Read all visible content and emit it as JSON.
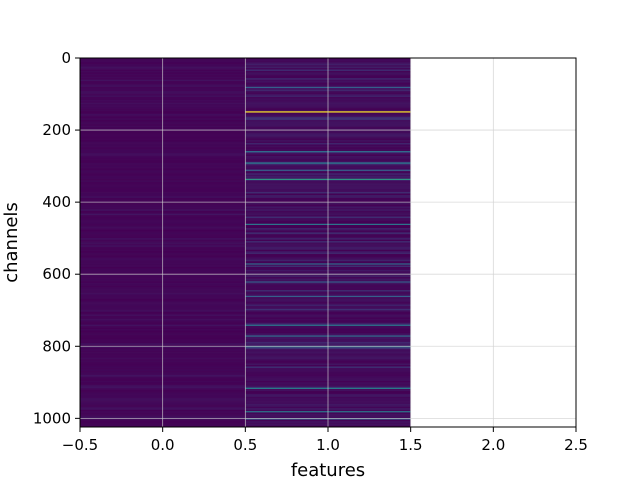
{
  "chart_data": {
    "type": "heatmap",
    "title": "",
    "xlabel": "features",
    "ylabel": "channels",
    "xlim": [
      -0.5,
      2.5
    ],
    "ylim": [
      1024,
      0
    ],
    "y_inverted": true,
    "grid": true,
    "x_ticks": [
      "−0.5",
      "0.0",
      "0.5",
      "1.0",
      "1.5",
      "2.0",
      "2.5"
    ],
    "x_tick_values": [
      -0.5,
      0.0,
      0.5,
      1.0,
      1.5,
      2.0,
      2.5
    ],
    "y_ticks": [
      "0",
      "200",
      "400",
      "600",
      "800",
      "1000"
    ],
    "y_tick_values": [
      0,
      200,
      400,
      600,
      800,
      1000
    ],
    "colormap": "viridis",
    "columns": [
      {
        "feature": 0,
        "value_range": [
          0.0,
          0.06
        ],
        "highlights": []
      },
      {
        "feature": 1,
        "value_range": [
          0.0,
          0.15
        ],
        "highlights": [
          {
            "channel": 148,
            "value": 1.0
          },
          {
            "channel": 80,
            "value": 0.3
          },
          {
            "channel": 258,
            "value": 0.35
          },
          {
            "channel": 290,
            "value": 0.4
          },
          {
            "channel": 310,
            "value": 0.3
          },
          {
            "channel": 335,
            "value": 0.55
          },
          {
            "channel": 460,
            "value": 0.4
          },
          {
            "channel": 570,
            "value": 0.35
          },
          {
            "channel": 620,
            "value": 0.3
          },
          {
            "channel": 660,
            "value": 0.3
          },
          {
            "channel": 740,
            "value": 0.4
          },
          {
            "channel": 770,
            "value": 0.35
          },
          {
            "channel": 800,
            "value": 0.35
          },
          {
            "channel": 915,
            "value": 0.45
          },
          {
            "channel": 980,
            "value": 0.4
          },
          {
            "channel": 1000,
            "value": 0.3
          }
        ]
      }
    ]
  }
}
